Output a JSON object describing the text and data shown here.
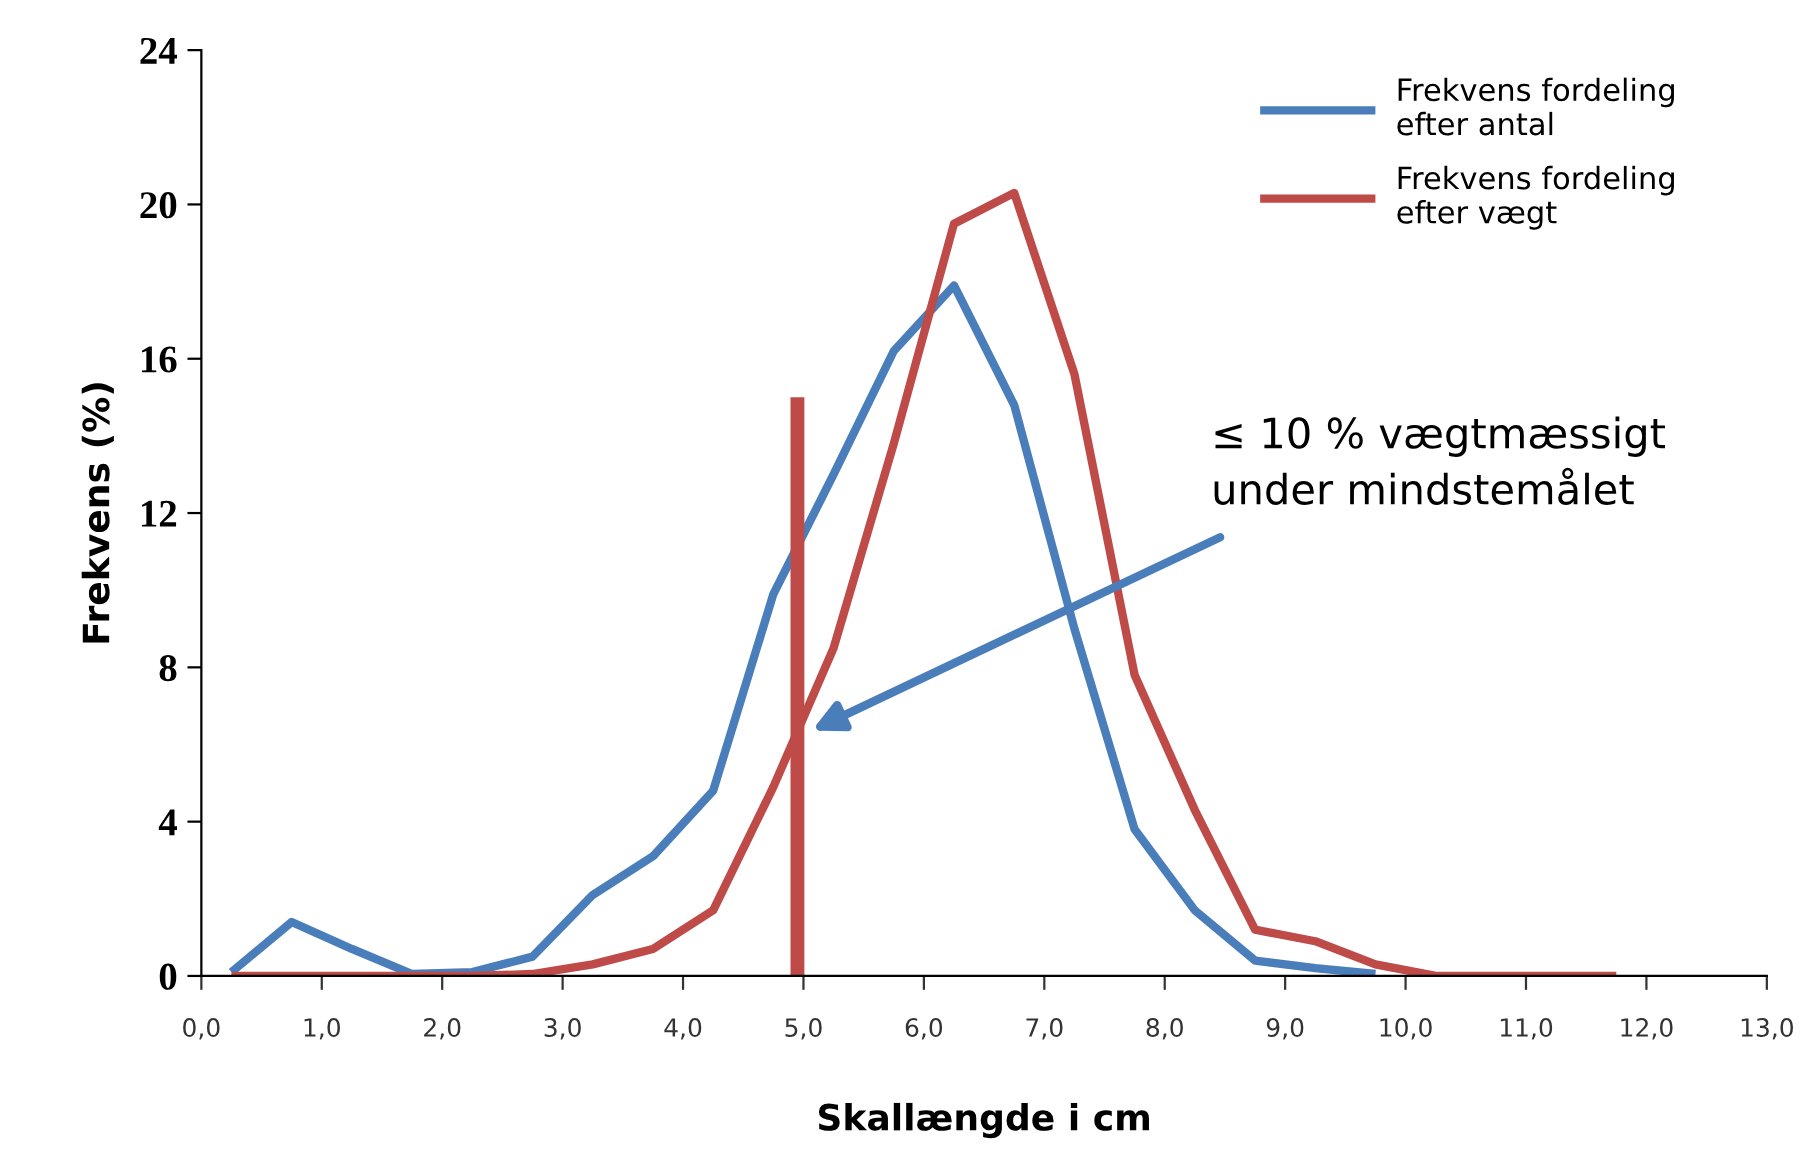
{
  "chart_data": {
    "type": "line",
    "xlabel": "Skallængde i cm",
    "ylabel": "Frekvens (%)",
    "series": [
      {
        "name": "Frekvens fordeling\nefter antal",
        "color": "#4a7ebb",
        "x": [
          0.25,
          0.75,
          1.25,
          1.75,
          2.25,
          2.75,
          3.25,
          3.75,
          4.25,
          4.75,
          5.25,
          5.75,
          6.25,
          6.75,
          7.25,
          7.75,
          8.25,
          8.75,
          9.25,
          9.75
        ],
        "values": [
          0.1,
          1.4,
          0.7,
          0.05,
          0.1,
          0.5,
          2.1,
          3.1,
          4.8,
          9.9,
          13.0,
          16.2,
          17.9,
          14.8,
          9.0,
          3.8,
          1.7,
          0.4,
          0.2,
          0.05
        ]
      },
      {
        "name": "Frekvens fordeling\nefter vægt",
        "color": "#be4b48",
        "x": [
          0.25,
          0.75,
          1.25,
          1.75,
          2.25,
          2.75,
          3.25,
          3.75,
          4.25,
          4.75,
          5.25,
          5.75,
          6.25,
          6.75,
          7.25,
          7.75,
          8.25,
          8.75,
          9.25,
          9.75,
          10.25,
          10.75,
          11.25,
          11.75
        ],
        "values": [
          0,
          0,
          0,
          0,
          0,
          0.05,
          0.3,
          0.7,
          1.7,
          4.9,
          8.5,
          13.8,
          19.5,
          20.3,
          15.6,
          7.8,
          4.3,
          1.2,
          0.9,
          0.3,
          0,
          0,
          0,
          0
        ]
      },
      {
        "color": "#be4b48",
        "x": [
          4.95,
          4.95
        ],
        "values": [
          0,
          15
        ]
      }
    ],
    "xlim": [
      0,
      13
    ],
    "xticks": [
      {
        "value": 0,
        "label": "0,0"
      },
      {
        "value": 1,
        "label": "1,0"
      },
      {
        "value": 2,
        "label": "2,0"
      },
      {
        "value": 3,
        "label": "3,0"
      },
      {
        "value": 4,
        "label": "4,0"
      },
      {
        "value": 5,
        "label": "5,0"
      },
      {
        "value": 6,
        "label": "6,0"
      },
      {
        "value": 7,
        "label": "7,0"
      },
      {
        "value": 8,
        "label": "8,0"
      },
      {
        "value": 9,
        "label": "9,0"
      },
      {
        "value": 10,
        "label": "10,0"
      },
      {
        "value": 11,
        "label": "11,0"
      },
      {
        "value": 12,
        "label": "12,0"
      },
      {
        "value": 13,
        "label": "13,0"
      }
    ],
    "ylim": [
      0,
      24
    ],
    "yticks": [
      0,
      4,
      8,
      12,
      16,
      20,
      24
    ],
    "annotations": [
      "≤ 10 % vægtmæssigt\nunder mindstemålet"
    ],
    "grid": false,
    "legend": "top right",
    "marker": "none",
    "line_style": "solid"
  }
}
